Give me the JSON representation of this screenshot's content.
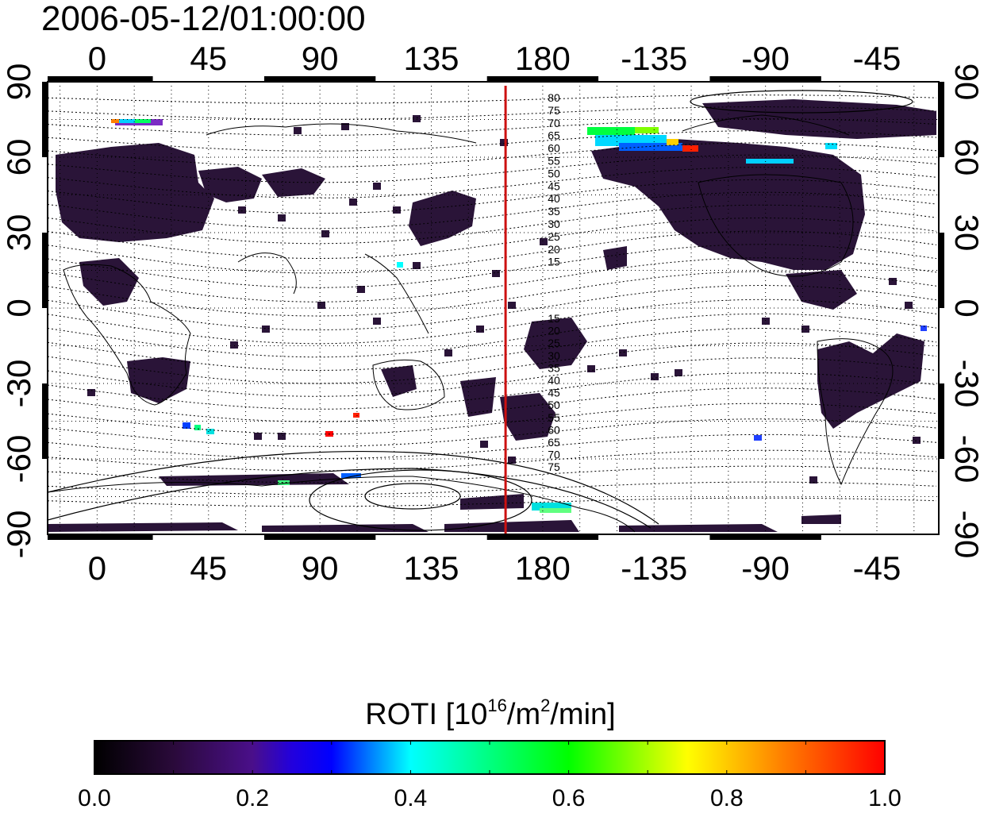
{
  "map": {
    "timestamp": "2006-05-12/01:00:00",
    "top_lon_labels": [
      "0",
      "45",
      "90",
      "135",
      "180",
      "-135",
      "-90",
      "-45"
    ],
    "bottom_lon_labels": [
      "0",
      "45",
      "90",
      "135",
      "180",
      "-135",
      "-90",
      "-45"
    ],
    "left_lat_labels": [
      "90",
      "60",
      "30",
      "0",
      "-30",
      "-60",
      "-90"
    ],
    "right_lat_labels": [
      "90",
      "60",
      "30",
      "0",
      "-30",
      "-60",
      "-90"
    ],
    "lon_range": [
      -20,
      340
    ],
    "lat_range": [
      -90,
      90
    ],
    "meridian_line_lon": 165,
    "meridian_line_color": "#cc1111",
    "grid": "dotted",
    "contour_labels_north": [
      "80",
      "75",
      "70",
      "65",
      "60",
      "55",
      "50",
      "45",
      "40",
      "35",
      "30",
      "25",
      "20",
      "15"
    ],
    "contour_labels_south": [
      "15",
      "20",
      "25",
      "30",
      "35",
      "40",
      "45",
      "50",
      "55",
      "60",
      "65",
      "70",
      "75"
    ]
  },
  "colorbar": {
    "title_prefix": "ROTI  [10",
    "title_sup1": "16",
    "title_mid": "/m",
    "title_sup2": "2",
    "title_suffix": "/min]",
    "min": 0.0,
    "max": 1.0,
    "tick_labels": [
      "0.0",
      "0.2",
      "0.4",
      "0.6",
      "0.8",
      "1.0"
    ],
    "colors": [
      "#000000",
      "#3a0a5a",
      "#4a0f8a",
      "#0000ff",
      "#00ffff",
      "#00ff00",
      "#ffff00",
      "#ff8000",
      "#ff0000"
    ]
  }
}
